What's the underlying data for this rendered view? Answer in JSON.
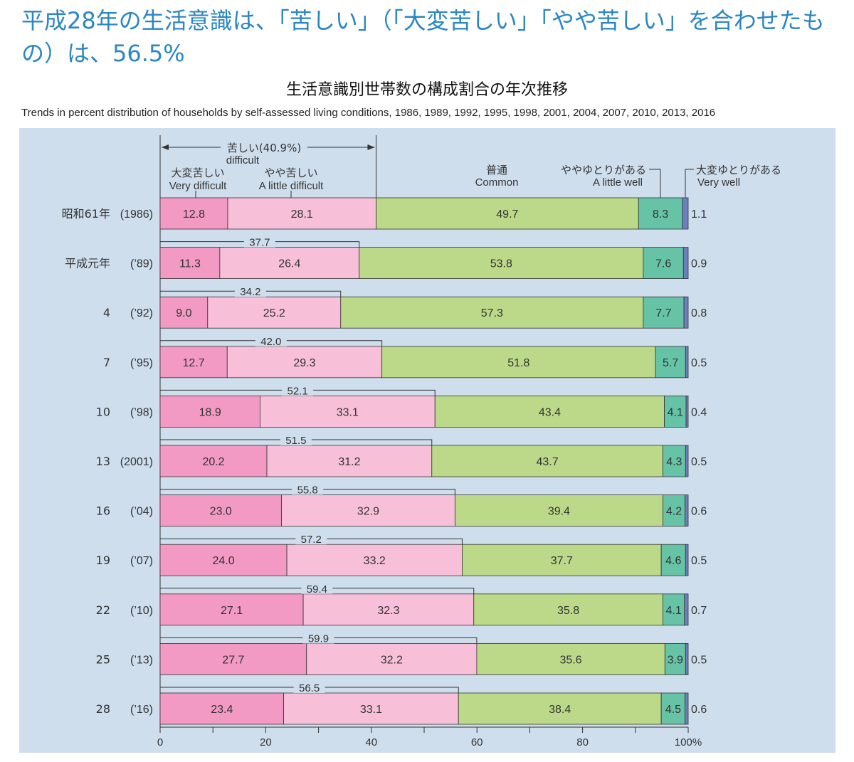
{
  "headline": "平成28年の生活意識は、「苦しい」（「大変苦しい」「やや苦しい」を合わせたもの）は、56.5%",
  "chart_data": {
    "type": "bar",
    "orientation": "horizontal-stacked",
    "title": "生活意識別世帯数の構成割合の年次推移",
    "subtitle": "Trends in percent distribution of households by self-assessed living conditions, 1986, 1989, 1992, 1995, 1998, 2001, 2004, 2007, 2010, 2013, 2016",
    "xlim": [
      0,
      100
    ],
    "xticks": [
      "0",
      "20",
      "40",
      "60",
      "80",
      "100%"
    ],
    "colors": {
      "very_difficult": "#f29ac4",
      "a_little_difficult": "#f7c0d8",
      "common": "#bcd98a",
      "a_little_well": "#66c3a5",
      "very_well": "#6e7fc0"
    },
    "legend": {
      "difficult_jp": "苦しい(40.9%)",
      "difficult_en": "difficult",
      "very_difficult_jp": "大変苦しい",
      "very_difficult_en": "Very difficult",
      "a_little_difficult_jp": "やや苦しい",
      "a_little_difficult_en": "A little difficult",
      "common_jp": "普通",
      "common_en": "Common",
      "a_little_well_jp": "ややゆとりがある",
      "a_little_well_en": "A little well",
      "very_well_jp": "大変ゆとりがある",
      "very_well_en": "Very well"
    },
    "series_names": [
      "very_difficult",
      "a_little_difficult",
      "common",
      "a_little_well",
      "very_well"
    ],
    "rows": [
      {
        "era": "昭和61年",
        "year": "(1986)",
        "values": [
          "12.8",
          "28.1",
          "49.7",
          "8.3",
          "1.1"
        ],
        "total_difficult": ""
      },
      {
        "era": "平成元年",
        "year": "(’89)",
        "values": [
          "11.3",
          "26.4",
          "53.8",
          "7.6",
          "0.9"
        ],
        "total_difficult": "37.7"
      },
      {
        "era": "4",
        "year": "(’92)",
        "values": [
          "9.0",
          "25.2",
          "57.3",
          "7.7",
          "0.8"
        ],
        "total_difficult": "34.2"
      },
      {
        "era": "7",
        "year": "(’95)",
        "values": [
          "12.7",
          "29.3",
          "51.8",
          "5.7",
          "0.5"
        ],
        "total_difficult": "42.0"
      },
      {
        "era": "10",
        "year": "(’98)",
        "values": [
          "18.9",
          "33.1",
          "43.4",
          "4.1",
          "0.4"
        ],
        "total_difficult": "52.1"
      },
      {
        "era": "13",
        "year": "(2001)",
        "values": [
          "20.2",
          "31.2",
          "43.7",
          "4.3",
          "0.5"
        ],
        "total_difficult": "51.5"
      },
      {
        "era": "16",
        "year": "(’04)",
        "values": [
          "23.0",
          "32.9",
          "39.4",
          "4.2",
          "0.6"
        ],
        "total_difficult": "55.8"
      },
      {
        "era": "19",
        "year": "(’07)",
        "values": [
          "24.0",
          "33.2",
          "37.7",
          "4.6",
          "0.5"
        ],
        "total_difficult": "57.2"
      },
      {
        "era": "22",
        "year": "(’10)",
        "values": [
          "27.1",
          "32.3",
          "35.8",
          "4.1",
          "0.7"
        ],
        "total_difficult": "59.4"
      },
      {
        "era": "25",
        "year": "(’13)",
        "values": [
          "27.7",
          "32.2",
          "35.6",
          "3.9",
          "0.5"
        ],
        "total_difficult": "59.9"
      },
      {
        "era": "28",
        "year": "(’16)",
        "values": [
          "23.4",
          "33.1",
          "38.4",
          "4.5",
          "0.6"
        ],
        "total_difficult": "56.5"
      }
    ]
  }
}
